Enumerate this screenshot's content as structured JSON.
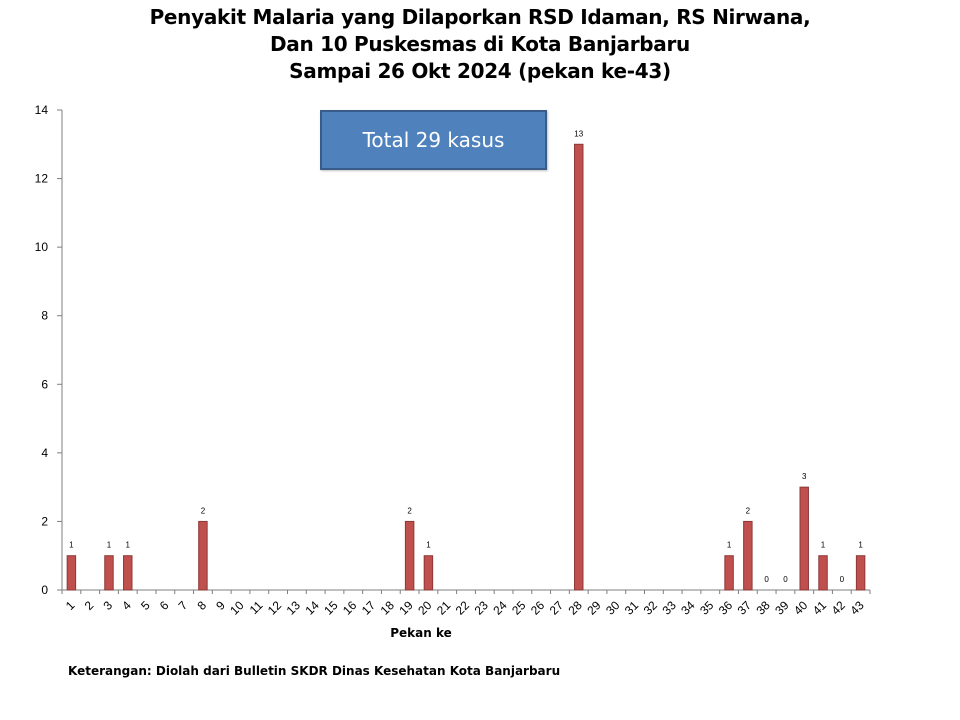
{
  "title_lines": [
    "Penyakit Malaria yang Dilaporkan RSD Idaman, RS Nirwana,",
    "Dan 10 Puskesmas di Kota Banjarbaru",
    "Sampai 26 Okt 2024 (pekan ke-43)"
  ],
  "total_box": "Total 29 kasus",
  "note": "Keterangan: Diolah dari Bulletin SKDR Dinas Kesehatan Kota Banjarbaru",
  "chart_data": {
    "type": "bar",
    "title": "Penyakit Malaria yang Dilaporkan RSD Idaman, RS Nirwana, Dan 10 Puskesmas di Kota Banjarbaru Sampai 26 Okt 2024 (pekan ke-43)",
    "xlabel": "Pekan ke",
    "ylabel": "",
    "ylim": [
      0,
      14
    ],
    "yticks": [
      0,
      2,
      4,
      6,
      8,
      10,
      12,
      14
    ],
    "categories": [
      "1",
      "2",
      "3",
      "4",
      "5",
      "6",
      "7",
      "8",
      "9",
      "10",
      "11",
      "12",
      "13",
      "14",
      "15",
      "16",
      "17",
      "18",
      "19",
      "20",
      "21",
      "22",
      "23",
      "24",
      "25",
      "26",
      "27",
      "28",
      "29",
      "30",
      "31",
      "32",
      "33",
      "34",
      "35",
      "36",
      "37",
      "38",
      "39",
      "40",
      "41",
      "42",
      "43"
    ],
    "values": [
      1,
      null,
      1,
      1,
      null,
      null,
      null,
      2,
      null,
      null,
      null,
      null,
      null,
      null,
      null,
      null,
      null,
      null,
      2,
      1,
      null,
      null,
      null,
      null,
      null,
      null,
      null,
      13,
      null,
      null,
      null,
      null,
      null,
      null,
      null,
      1,
      2,
      0,
      0,
      3,
      1,
      0,
      1
    ],
    "data_labels": [
      "1",
      "",
      "1",
      "1",
      "",
      "",
      "",
      "2",
      "",
      "",
      "",
      "",
      "",
      "",
      "",
      "",
      "",
      "",
      "2",
      "1",
      "",
      "",
      "",
      "",
      "",
      "",
      "",
      "13",
      "",
      "",
      "",
      "",
      "",
      "",
      "",
      "1",
      "2",
      "0",
      "0",
      "3",
      "1",
      "0",
      "1"
    ],
    "bar_color": "#c0504d",
    "bar_edge_color": "#8c3836",
    "grid": false,
    "legend": "none"
  }
}
